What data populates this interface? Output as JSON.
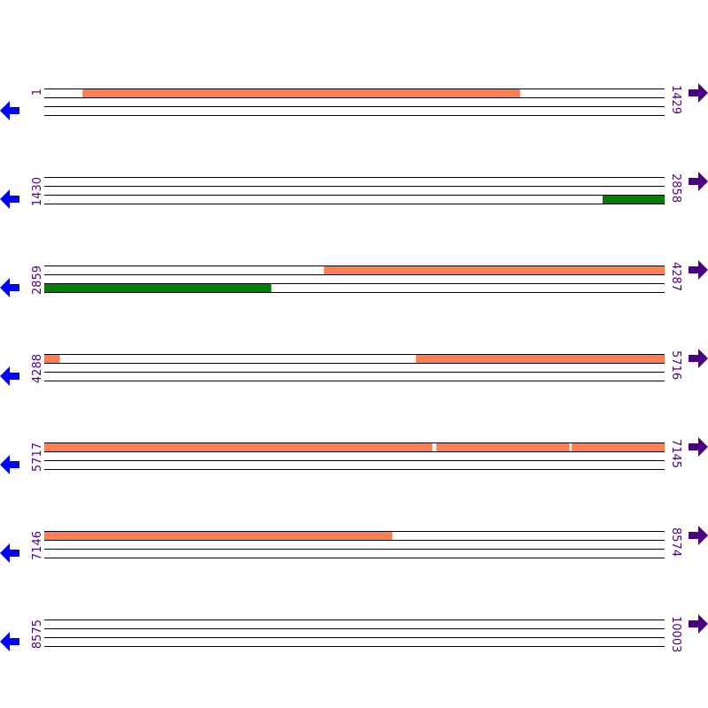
{
  "colors": {
    "forward_feature": "#ff7f50",
    "reverse_feature": "#008000",
    "left_arrow": "#0000ff",
    "right_arrow": "#4b0082",
    "label": "#4b0082"
  },
  "icons": {
    "left": "arrow-left-icon",
    "right": "arrow-right-icon"
  },
  "rows": [
    {
      "start": "1",
      "end": "1429",
      "features": [
        {
          "from": 89,
          "to": 1096,
          "track": "top",
          "color": "#ff7f50"
        }
      ]
    },
    {
      "start": "1430",
      "end": "2858",
      "features": [
        {
          "from": 2716,
          "to": 2858,
          "track": "bottom",
          "color": "#008000"
        }
      ]
    },
    {
      "start": "2859",
      "end": "4287",
      "features": [
        {
          "from": 3503,
          "to": 4287,
          "track": "top",
          "color": "#ff7f50"
        },
        {
          "from": 2859,
          "to": 3381,
          "track": "bottom",
          "color": "#008000"
        }
      ]
    },
    {
      "start": "4288",
      "end": "5716",
      "features": [
        {
          "from": 4288,
          "to": 4323,
          "track": "top",
          "color": "#ff7f50"
        },
        {
          "from": 5144,
          "to": 5716,
          "track": "top",
          "color": "#ff7f50"
        }
      ]
    },
    {
      "start": "5717",
      "end": "7145",
      "features": [
        {
          "from": 5717,
          "to": 6610,
          "track": "top",
          "color": "#ff7f50"
        },
        {
          "from": 6620,
          "to": 6926,
          "track": "top",
          "color": "#ff7f50"
        },
        {
          "from": 6932,
          "to": 7145,
          "track": "top",
          "color": "#ff7f50"
        }
      ]
    },
    {
      "start": "7146",
      "end": "8574",
      "features": [
        {
          "from": 7146,
          "to": 7947,
          "track": "top",
          "color": "#ff7f50"
        }
      ]
    },
    {
      "start": "8575",
      "end": "10003",
      "features": []
    }
  ]
}
